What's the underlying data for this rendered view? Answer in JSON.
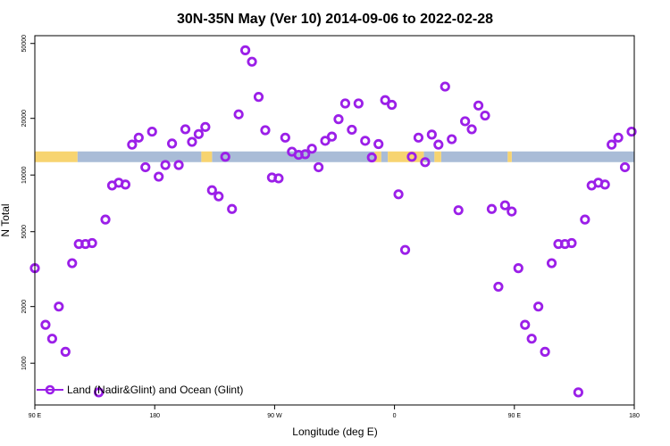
{
  "chart_data": {
    "type": "scatter",
    "title": "30N-35N May (Ver 10)   2014-09-06 to 2022-02-28",
    "xlabel": "Longitude (deg E)",
    "ylabel": "N Total",
    "x_axis": {
      "range_deg_east": [
        90,
        540
      ],
      "ticks": [
        {
          "value": 90,
          "label": "90 E"
        },
        {
          "value": 180,
          "label": "180"
        },
        {
          "value": 270,
          "label": "90 W"
        },
        {
          "value": 360,
          "label": "0"
        },
        {
          "value": 450,
          "label": "90 E"
        },
        {
          "value": 540,
          "label": "180"
        }
      ]
    },
    "y_axis": {
      "scale": "log",
      "range": [
        600,
        55000
      ],
      "ticks": [
        {
          "value": 1000,
          "label": "1000"
        },
        {
          "value": 2000,
          "label": "2000"
        },
        {
          "value": 5000,
          "label": "5000"
        },
        {
          "value": 10000,
          "label": "10000"
        },
        {
          "value": 20000,
          "label": "20000"
        },
        {
          "value": 50000,
          "label": "50000"
        }
      ]
    },
    "legend": {
      "position": "bottom-left",
      "label": "Land (Nadir&Glint) and Ocean (Glint)"
    },
    "colors": {
      "series": "#9b1fe8",
      "land_band": "#f7d470",
      "ocean_band": "#a9bcd7"
    },
    "band": {
      "y_value": 12500,
      "land_segments": [
        [
          90,
          122
        ],
        [
          215,
          223
        ],
        [
          345,
          350
        ],
        [
          355,
          382
        ],
        [
          390,
          395
        ],
        [
          445,
          448
        ]
      ],
      "ocean_segments": [
        [
          122,
          215
        ],
        [
          223,
          345
        ],
        [
          350,
          355
        ],
        [
          382,
          390
        ],
        [
          395,
          445
        ],
        [
          448,
          540
        ]
      ]
    },
    "series": [
      {
        "name": "Land (Nadir&Glint) and Ocean (Glint)",
        "points": [
          [
            90,
            3200
          ],
          [
            98,
            1600
          ],
          [
            103,
            1350
          ],
          [
            108,
            2000
          ],
          [
            113,
            1150
          ],
          [
            118,
            3400
          ],
          [
            123,
            4300
          ],
          [
            128,
            4300
          ],
          [
            133,
            4350
          ],
          [
            138,
            700
          ],
          [
            143,
            5800
          ],
          [
            148,
            8800
          ],
          [
            153,
            9100
          ],
          [
            158,
            8900
          ],
          [
            163,
            14500
          ],
          [
            168,
            15800
          ],
          [
            173,
            11000
          ],
          [
            178,
            17000
          ],
          [
            183,
            9800
          ],
          [
            188,
            11300
          ],
          [
            193,
            14700
          ],
          [
            198,
            11300
          ],
          [
            203,
            17500
          ],
          [
            208,
            15000
          ],
          [
            213,
            16500
          ],
          [
            218,
            18000
          ],
          [
            223,
            8300
          ],
          [
            228,
            7700
          ],
          [
            233,
            12500
          ],
          [
            238,
            6600
          ],
          [
            243,
            21000
          ],
          [
            248,
            46000
          ],
          [
            253,
            40000
          ],
          [
            258,
            26000
          ],
          [
            263,
            17300
          ],
          [
            268,
            9700
          ],
          [
            273,
            9600
          ],
          [
            278,
            15800
          ],
          [
            283,
            13300
          ],
          [
            288,
            12800
          ],
          [
            293,
            12900
          ],
          [
            298,
            13800
          ],
          [
            303,
            11000
          ],
          [
            308,
            15200
          ],
          [
            313,
            16000
          ],
          [
            318,
            19800
          ],
          [
            323,
            24000
          ],
          [
            328,
            17400
          ],
          [
            333,
            24000
          ],
          [
            338,
            15200
          ],
          [
            343,
            12400
          ],
          [
            348,
            14600
          ],
          [
            353,
            25000
          ],
          [
            358,
            23600
          ],
          [
            363,
            7900
          ],
          [
            368,
            4000
          ],
          [
            373,
            12500
          ],
          [
            378,
            15800
          ],
          [
            383,
            11700
          ],
          [
            388,
            16400
          ],
          [
            393,
            14500
          ],
          [
            398,
            29500
          ],
          [
            403,
            15500
          ],
          [
            408,
            6500
          ],
          [
            413,
            19300
          ],
          [
            418,
            17500
          ],
          [
            423,
            23400
          ],
          [
            428,
            20700
          ],
          [
            433,
            6600
          ],
          [
            438,
            2550
          ],
          [
            443,
            6900
          ],
          [
            448,
            6400
          ],
          [
            453,
            3200
          ],
          [
            458,
            1600
          ],
          [
            463,
            1350
          ],
          [
            468,
            2000
          ],
          [
            473,
            1150
          ],
          [
            478,
            3400
          ],
          [
            483,
            4300
          ],
          [
            488,
            4300
          ],
          [
            493,
            4350
          ],
          [
            498,
            700
          ],
          [
            503,
            5800
          ],
          [
            508,
            8800
          ],
          [
            513,
            9100
          ],
          [
            518,
            8900
          ],
          [
            523,
            14500
          ],
          [
            528,
            15800
          ],
          [
            533,
            11000
          ],
          [
            538,
            17000
          ]
        ]
      }
    ]
  }
}
